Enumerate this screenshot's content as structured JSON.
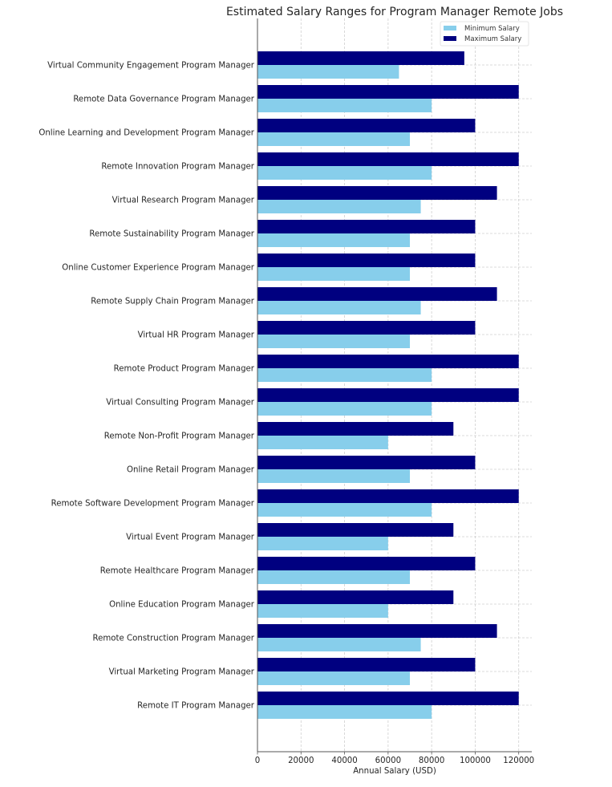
{
  "chart_data": {
    "type": "bar",
    "orientation": "horizontal",
    "title": "Estimated Salary Ranges for Program Manager Remote Jobs",
    "xlabel": "Annual Salary (USD)",
    "ylabel": "",
    "xlim": [
      0,
      126000
    ],
    "xticks": [
      0,
      20000,
      40000,
      60000,
      80000,
      100000,
      120000
    ],
    "xtick_labels": [
      "0",
      "20000",
      "40000",
      "60000",
      "80000",
      "100000",
      "120000"
    ],
    "grid": true,
    "legend_position": "top-right",
    "categories": [
      "Remote IT Program Manager",
      "Virtual Marketing Program Manager",
      "Remote Construction Program Manager",
      "Online Education Program Manager",
      "Remote Healthcare Program Manager",
      "Virtual Event Program Manager",
      "Remote Software Development Program Manager",
      "Online Retail Program Manager",
      "Remote Non-Profit Program Manager",
      "Virtual Consulting Program Manager",
      "Remote Product Program Manager",
      "Virtual HR Program Manager",
      "Remote Supply Chain Program Manager",
      "Online Customer Experience Program Manager",
      "Remote Sustainability Program Manager",
      "Virtual Research Program Manager",
      "Remote Innovation Program Manager",
      "Online Learning and Development Program Manager",
      "Remote Data Governance Program Manager",
      "Virtual Community Engagement Program Manager"
    ],
    "series": [
      {
        "name": "Minimum Salary",
        "color": "#87CEEB",
        "values": [
          80000,
          70000,
          75000,
          60000,
          70000,
          60000,
          80000,
          70000,
          60000,
          80000,
          80000,
          70000,
          75000,
          70000,
          70000,
          75000,
          80000,
          70000,
          80000,
          65000
        ]
      },
      {
        "name": "Maximum Salary",
        "color": "#000080",
        "values": [
          120000,
          100000,
          110000,
          90000,
          100000,
          90000,
          120000,
          100000,
          90000,
          120000,
          120000,
          100000,
          110000,
          100000,
          100000,
          110000,
          120000,
          100000,
          120000,
          95000
        ]
      }
    ]
  }
}
